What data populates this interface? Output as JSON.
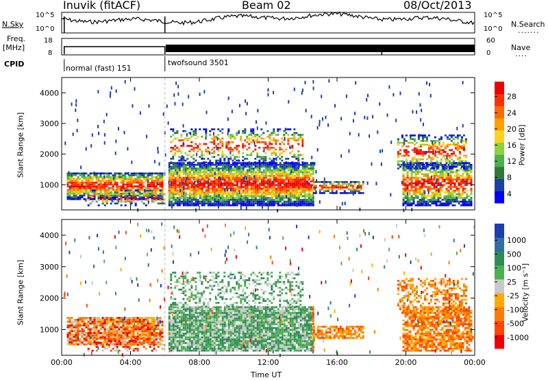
{
  "header": {
    "station": "Inuvik (fitACF)",
    "beam": "Beam 02",
    "date": "08/Oct/2013"
  },
  "strip_noise": {
    "left_label": "N.Sky",
    "right_label": "N.Search",
    "left_ticks": [
      "10^5",
      "10^0"
    ],
    "right_ticks": [
      "10^5",
      "10^0"
    ]
  },
  "strip_freq": {
    "left_label_top": "Freq.",
    "left_label_bottom": "[MHz]",
    "left_ticks": [
      "18",
      "8"
    ],
    "right_label": "Nave",
    "right_ticks": [
      "60",
      "0"
    ]
  },
  "strip_cpid": {
    "label": "CPID",
    "modes": [
      {
        "name": "normal (fast) 151",
        "start_hour": 0,
        "end_hour": 6
      },
      {
        "name": "twofsound 3501",
        "start_hour": 6,
        "end_hour": 24
      }
    ]
  },
  "time_axis": {
    "label": "Time UT",
    "ticks": [
      "00:00",
      "04:00",
      "08:00",
      "12:00",
      "16:00",
      "20:00",
      "00:00"
    ]
  },
  "chart_data": [
    {
      "type": "heatmap",
      "name": "power",
      "ylabel": "Slant Range [km]",
      "y_ticks": [
        "1000",
        "2000",
        "3000",
        "4000"
      ],
      "xlim_hours": [
        0,
        24
      ],
      "ylim_km": [
        180,
        4500
      ],
      "colorbar": {
        "label": "Power [dB]",
        "ticks": [
          "28",
          "24",
          "20",
          "16",
          "12",
          "8",
          "4"
        ],
        "colors": [
          "#0000ff",
          "#1b3fa8",
          "#2e7a3a",
          "#4caf50",
          "#8bd33a",
          "#ffd21a",
          "#ffa000",
          "#ff6a00",
          "#ff3000",
          "#ee0000"
        ]
      }
    },
    {
      "type": "heatmap",
      "name": "velocity",
      "ylabel": "Slant Range [km]",
      "y_ticks": [
        "1000",
        "2000",
        "3000",
        "4000"
      ],
      "xlim_hours": [
        0,
        24
      ],
      "ylim_km": [
        180,
        4500
      ],
      "colorbar": {
        "label": "Velocity [m s⁻¹]",
        "ticks": [
          "1000",
          "500",
          "100",
          "25",
          "-25",
          "-100",
          "-500",
          "-1000"
        ],
        "colors": [
          "#ee0000",
          "#ff4400",
          "#ff7a00",
          "#ffaa00",
          "#c8c8c8",
          "#4caf50",
          "#2e8b57",
          "#2e6fa8",
          "#1a3fb0"
        ]
      }
    }
  ]
}
